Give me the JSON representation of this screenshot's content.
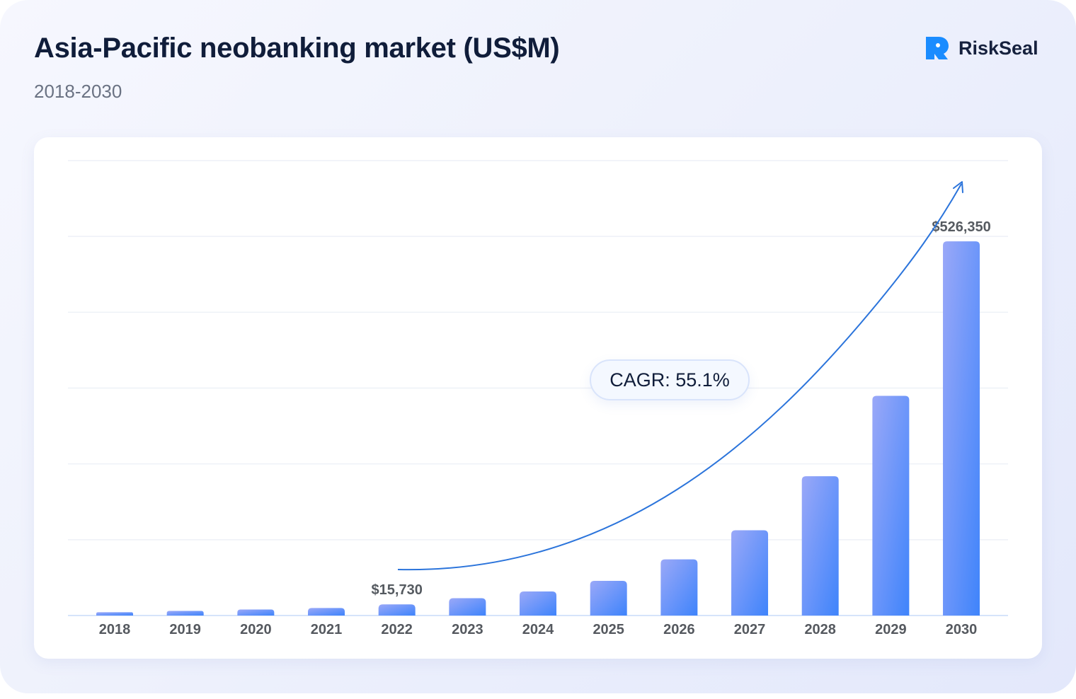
{
  "header": {
    "title": "Asia-Pacific neobanking market (US$M)",
    "subtitle": "2018-2030"
  },
  "brand": {
    "name": "RiskSeal",
    "logo_icon": "riskseal-logo-icon",
    "logo_color": "#1a8cff"
  },
  "annotation": {
    "cagr_label": "CAGR: 55.1%"
  },
  "colors": {
    "bar_top": "#9aa8f8",
    "bar_bottom": "#3f84fb",
    "trend_arrow": "#2b74db",
    "grid": "#eef1f7",
    "axis": "#d6e4fa",
    "tick_text": "#55595f",
    "label_text": "#555a60"
  },
  "chart_data": {
    "type": "bar",
    "title": "Asia-Pacific neobanking market (US$M)",
    "subtitle": "2018-2030",
    "xlabel": "",
    "ylabel": "",
    "ylim": [
      0,
      640000
    ],
    "grid": true,
    "legend": "none",
    "categories": [
      "2018",
      "2019",
      "2020",
      "2021",
      "2022",
      "2023",
      "2024",
      "2025",
      "2026",
      "2027",
      "2028",
      "2029",
      "2030"
    ],
    "values": [
      4600,
      6500,
      8500,
      10600,
      15730,
      24400,
      33800,
      48800,
      79000,
      120000,
      196000,
      309000,
      526350
    ],
    "data_labels": [
      {
        "category": "2022",
        "text": "$15,730"
      },
      {
        "category": "2030",
        "text": "$526,350"
      }
    ],
    "annotations": [
      {
        "text": "CAGR: 55.1%",
        "type": "trend-arrow",
        "from": "2022",
        "to": "2030"
      }
    ]
  }
}
